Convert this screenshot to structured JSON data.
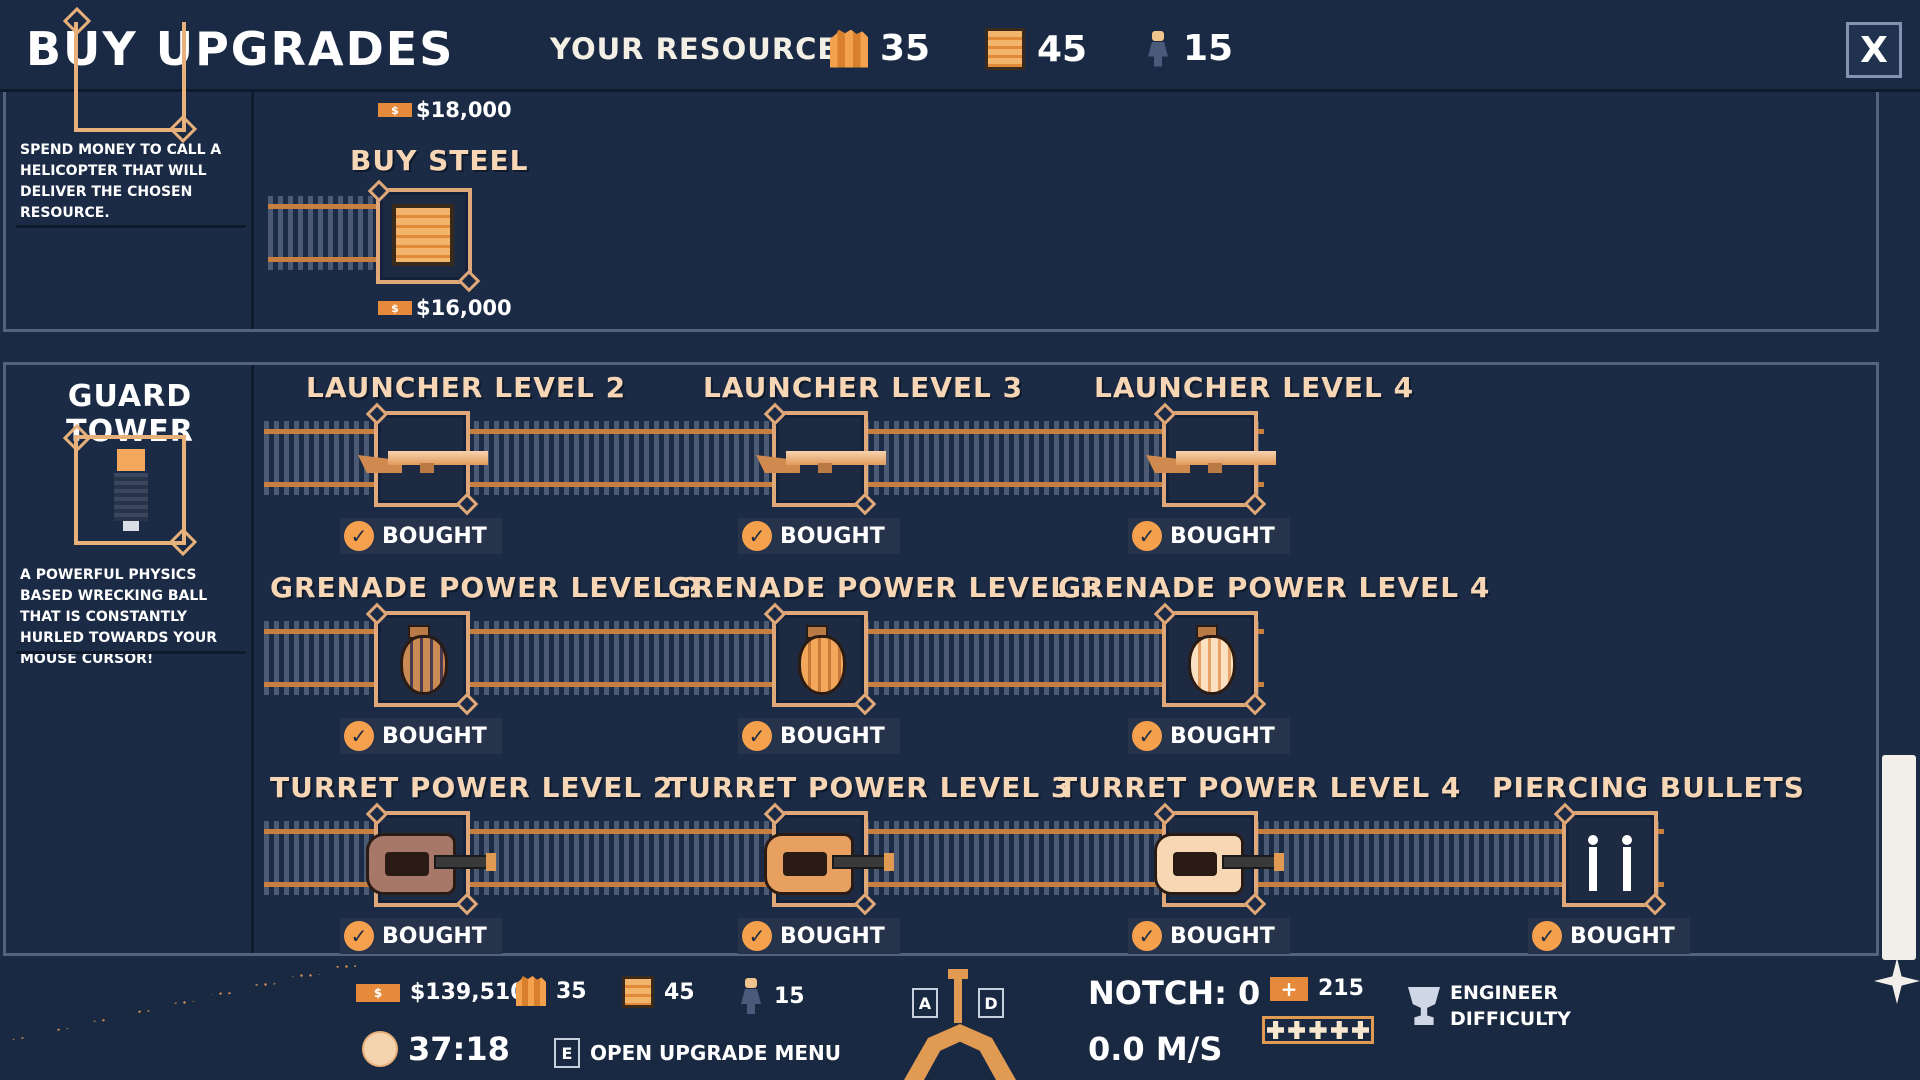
{
  "header": {
    "title": "BUY UPGRADES",
    "resources_label": "YOUR RESOURCES",
    "wood": "35",
    "steel": "45",
    "workers": "15",
    "close": "X"
  },
  "top_panel": {
    "description": "SPEND MONEY TO CALL A HELICOPTER THAT WILL DELIVER THE CHOSEN RESOURCE.",
    "item_above_price": "$18,000",
    "buy_steel": {
      "title": "BUY STEEL",
      "price": "$16,000"
    },
    "price_tag": "$"
  },
  "guard_tower": {
    "title": "GUARD TOWER",
    "description": "A POWERFUL PHYSICS BASED WRECKING BALL THAT IS CONSTANTLY HURLED TOWARDS YOUR MOUSE CURSOR!",
    "bought_label": "BOUGHT",
    "check": "✓",
    "launcher": [
      "LAUNCHER LEVEL 2",
      "LAUNCHER LEVEL 3",
      "LAUNCHER LEVEL 4"
    ],
    "grenade": [
      "GRENADE POWER LEVEL 2",
      "GRENADE POWER LEVEL 3",
      "GRENADE POWER LEVEL 4"
    ],
    "turret": [
      "TURRET POWER LEVEL 2",
      "TURRET POWER LEVEL 3",
      "TURRET POWER LEVEL 4"
    ],
    "piercing": "PIERCING BULLETS"
  },
  "hud": {
    "money_tag": "$",
    "money": "$139,510",
    "wood": "35",
    "steel": "45",
    "workers": "15",
    "timer": "37:18",
    "menu_key": "E",
    "open_menu": "OPEN UPGRADE MENU",
    "key_a": "A",
    "key_d": "D",
    "notch": "NOTCH: 0",
    "speed": "0.0 M/S",
    "health": "215",
    "health_plus": "+",
    "difficulty_line1": "ENGINEER",
    "difficulty_line2": "DIFFICULTY"
  },
  "icons": {
    "wood": "wood-icon",
    "steel": "steel-icon",
    "worker": "worker-icon",
    "launcher": "launcher-icon",
    "grenade": "grenade-icon",
    "turret": "turret-icon",
    "piercing": "piercing-bullets-icon",
    "clock": "clock-icon",
    "trophy": "trophy-icon",
    "shuriken": "shuriken-icon"
  },
  "colors": {
    "background": "#1b2b45",
    "accent": "#e58a3a",
    "frame": "#e0a878",
    "title_text": "#f7d6b6"
  }
}
